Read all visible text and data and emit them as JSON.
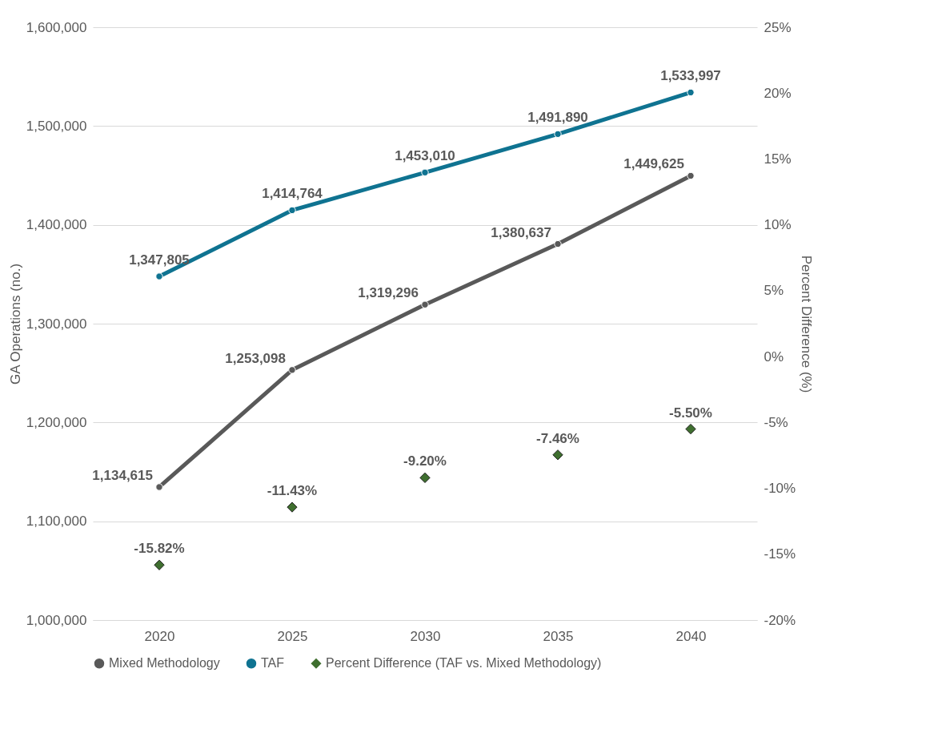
{
  "chart_data": {
    "type": "line",
    "categories": [
      "2020",
      "2025",
      "2030",
      "2035",
      "2040"
    ],
    "ylabel": "GA Operations (no.)",
    "y2label": "Percent Difference (%)",
    "ylim": [
      1000000,
      1600000
    ],
    "yticks": [
      {
        "value": 1000000,
        "label": "1,000,000"
      },
      {
        "value": 1100000,
        "label": "1,100,000"
      },
      {
        "value": 1200000,
        "label": "1,200,000"
      },
      {
        "value": 1300000,
        "label": "1,300,000"
      },
      {
        "value": 1400000,
        "label": "1,400,000"
      },
      {
        "value": 1500000,
        "label": "1,500,000"
      },
      {
        "value": 1600000,
        "label": "1,600,000"
      }
    ],
    "y2lim": [
      -20,
      25
    ],
    "y2ticks": [
      {
        "value": -20,
        "label": "-20%"
      },
      {
        "value": -15,
        "label": "-15%"
      },
      {
        "value": -10,
        "label": "-10%"
      },
      {
        "value": -5,
        "label": "-5%"
      },
      {
        "value": 0,
        "label": "0%"
      },
      {
        "value": 5,
        "label": "5%"
      },
      {
        "value": 10,
        "label": "10%"
      },
      {
        "value": 15,
        "label": "15%"
      },
      {
        "value": 20,
        "label": "20%"
      },
      {
        "value": 25,
        "label": "25%"
      }
    ],
    "grid": "y",
    "legend": "bottom",
    "series": [
      {
        "name": "Mixed Methodology",
        "color": "#595959",
        "marker": "circle",
        "values": [
          1134615,
          1253098,
          1319296,
          1380637,
          1449625
        ],
        "value_labels": [
          "1,134,615",
          "1,253,098",
          "1,319,296",
          "1,380,637",
          "1,449,625"
        ]
      },
      {
        "name": "TAF",
        "color": "#0f7391",
        "marker": "circle",
        "values": [
          1347805,
          1414764,
          1453010,
          1491890,
          1533997
        ],
        "value_labels": [
          "1,347,805",
          "1,414,764",
          "1,453,010",
          "1,491,890",
          "1,533,997"
        ]
      },
      {
        "name": "Percent Difference (TAF vs. Mixed Methodology)",
        "type": "scatter",
        "axis": "y2",
        "marker": "diamond",
        "color": "#3f6f2f",
        "values": [
          -15.82,
          -11.43,
          -9.2,
          -7.46,
          -5.5
        ],
        "value_labels": [
          "-15.82%",
          "-11.43%",
          "-9.20%",
          "-7.46%",
          "-5.50%"
        ]
      }
    ]
  }
}
